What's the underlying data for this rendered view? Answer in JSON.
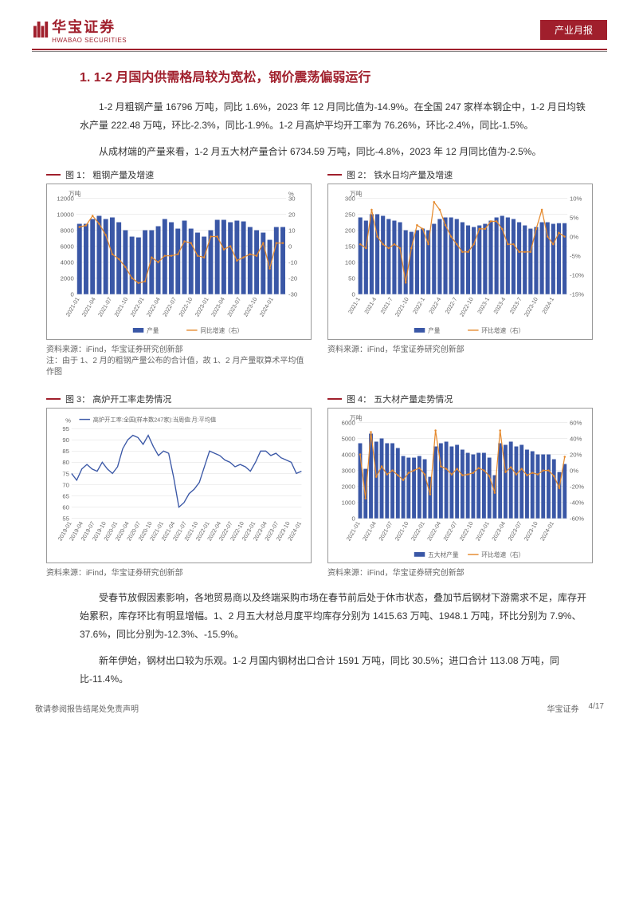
{
  "header": {
    "logo_cn": "华宝证券",
    "logo_en": "HWABAO SECURITIES",
    "badge": "产业月报"
  },
  "section_title": "1. 1-2 月国内供需格局较为宽松，钢价震荡偏弱运行",
  "para1": "1-2 月粗钢产量 16796 万吨，同比 1.6%，2023 年 12 月同比值为-14.9%。在全国 247 家样本钢企中，1-2 月日均铁水产量 222.48 万吨，环比-2.3%，同比-1.9%。1-2 月高炉平均开工率为 76.26%，环比-2.4%，同比-1.5%。",
  "para2": "从成材端的产量来看，1-2 月五大材产量合计 6734.59 万吨，同比-4.8%，2023 年 12 月同比值为-2.5%。",
  "para3": "受春节放假因素影响，各地贸易商以及终端采购市场在春节前后处于休市状态，叠加节后钢材下游需求不足，库存开始累积，库存环比有明显增幅。1、2 月五大材总月度平均库存分别为 1415.63 万吨、1948.1 万吨，环比分别为 7.9%、37.6%，同比分别为-12.3%、-15.9%。",
  "para4": "新年伊始，钢材出口较为乐观。1-2 月国内钢材出口合计 1591 万吨，同比 30.5%；进口合计 113.08 万吨，同比-11.4%。",
  "chart1": {
    "title": "图 1： 粗钢产量及增速",
    "y1_label": "万吨",
    "y2_label": "%",
    "y1_ticks": [
      0,
      2000,
      4000,
      6000,
      8000,
      10000,
      12000
    ],
    "y2_ticks": [
      -30,
      -20,
      -10,
      0,
      10,
      20,
      30
    ],
    "x_labels": [
      "2021-01",
      "2021-04",
      "2021-07",
      "2021-10",
      "2022-01",
      "2022-04",
      "2022-07",
      "2022-10",
      "2023-01",
      "2023-04",
      "2023-07",
      "2023-10",
      "2024-01"
    ],
    "bars": [
      8800,
      8800,
      9400,
      9800,
      9400,
      9600,
      9000,
      8000,
      7200,
      7100,
      8000,
      8000,
      8500,
      9400,
      9000,
      8200,
      9200,
      8200,
      7700,
      7200,
      8000,
      9300,
      9300,
      9000,
      9200,
      9100,
      8400,
      8000,
      7700,
      6800,
      8400,
      8400
    ],
    "line": [
      12,
      13,
      19,
      14,
      7,
      -5,
      -8,
      -13,
      -20,
      -23,
      -22,
      -7,
      -10,
      -6,
      -6,
      -5,
      3,
      2,
      -6,
      -7,
      6,
      6,
      -2,
      0,
      -9,
      -7,
      -5,
      -6,
      2,
      -14,
      2,
      2
    ],
    "legend_bar": "产量",
    "legend_line": "同比增速（右）",
    "bar_color": "#3a57a6",
    "line_color": "#e58a2e",
    "source": "资料来源：iFind，华宝证券研究创新部",
    "note": "注：由于 1、2 月的粗钢产量公布的合计值，故 1、2 月产量取算术平均值作图"
  },
  "chart2": {
    "title": "图 2： 铁水日均产量及增速",
    "y1_label": "万吨",
    "y2_label": "",
    "y1_ticks": [
      0,
      50,
      100,
      150,
      200,
      250,
      300
    ],
    "y2_ticks_labels": [
      "-15%",
      "-10%",
      "-5%",
      "0%",
      "5%",
      "10%"
    ],
    "x_labels": [
      "2021-1",
      "2021-4",
      "2021-7",
      "2021-10",
      "2022-1",
      "2022-4",
      "2022-7",
      "2022-10",
      "2023-1",
      "2023-4",
      "2023-7",
      "2023-10",
      "2024-1"
    ],
    "bars": [
      240,
      230,
      250,
      250,
      245,
      235,
      230,
      225,
      200,
      195,
      200,
      205,
      200,
      220,
      235,
      240,
      240,
      235,
      225,
      215,
      210,
      215,
      220,
      230,
      240,
      245,
      240,
      235,
      225,
      215,
      205,
      210,
      225,
      225,
      220,
      222,
      222
    ],
    "line": [
      -2,
      -3,
      7,
      0,
      -2,
      -3,
      -2,
      -3,
      -12,
      -3,
      3,
      2,
      -2,
      9,
      7,
      3,
      0,
      -2,
      -4,
      -4,
      -2,
      2,
      2,
      4,
      4,
      2,
      -2,
      -2,
      -4,
      -4,
      -4,
      2,
      7,
      0,
      -2,
      1,
      0
    ],
    "legend_bar": "产量",
    "legend_line": "环比增速（右）",
    "bar_color": "#3a57a6",
    "line_color": "#e58a2e",
    "source": "资料来源：iFind，华宝证券研究创新部"
  },
  "chart3": {
    "title": "图 3： 高炉开工率走势情况",
    "y1_label": "%",
    "y1_ticks": [
      55,
      60,
      65,
      70,
      75,
      80,
      85,
      90,
      95
    ],
    "x_labels": [
      "2019-01",
      "2019-04",
      "2019-07",
      "2019-10",
      "2020-01",
      "2020-04",
      "2020-07",
      "2020-10",
      "2021-01",
      "2021-04",
      "2021-07",
      "2021-10",
      "2022-01",
      "2022-04",
      "2022-07",
      "2022-10",
      "2023-01",
      "2023-04",
      "2023-07",
      "2023-10",
      "2024-01"
    ],
    "line": [
      75,
      72,
      77,
      79,
      77,
      76,
      80,
      77,
      75,
      78,
      86,
      90,
      92,
      91,
      88,
      92,
      87,
      83,
      85,
      84,
      73,
      60,
      62,
      66,
      68,
      71,
      78,
      85,
      84,
      83,
      81,
      80,
      78,
      79,
      78,
      76,
      80,
      85,
      85,
      83,
      84,
      82,
      81,
      80,
      75,
      76
    ],
    "legend_line": "高炉开工率:全国(样本数247家):当周值:月:平均值",
    "line_color": "#3a57a6",
    "source": "资料来源：iFind，华宝证券研究创新部"
  },
  "chart4": {
    "title": "图 4： 五大材产量走势情况",
    "y1_label": "万吨",
    "y1_ticks": [
      0,
      1000,
      2000,
      3000,
      4000,
      5000,
      6000
    ],
    "y2_ticks_labels": [
      "-60%",
      "-40%",
      "-20%",
      "0%",
      "20%",
      "40%",
      "60%"
    ],
    "x_labels": [
      "2021-01",
      "2021-04",
      "2021-07",
      "2021-10",
      "2022-01",
      "2022-04",
      "2022-07",
      "2022-10",
      "2023-01",
      "2023-04",
      "2023-07",
      "2023-10",
      "2024-01"
    ],
    "bars": [
      4700,
      3100,
      5300,
      4800,
      5000,
      4700,
      4700,
      4400,
      3900,
      3800,
      3800,
      3900,
      3700,
      2600,
      4500,
      4700,
      4800,
      4500,
      4600,
      4300,
      4100,
      4000,
      4100,
      4100,
      3800,
      2700,
      4700,
      4600,
      4800,
      4500,
      4600,
      4300,
      4200,
      4000,
      4000,
      4000,
      3700,
      2900,
      3400
    ],
    "line": [
      20,
      -35,
      48,
      -8,
      5,
      -5,
      0,
      -6,
      -12,
      -3,
      0,
      3,
      -5,
      -30,
      50,
      5,
      2,
      -5,
      2,
      -6,
      -5,
      -3,
      3,
      0,
      -7,
      -28,
      50,
      -2,
      4,
      -5,
      2,
      -6,
      -3,
      -5,
      0,
      0,
      -7,
      -22,
      17
    ],
    "legend_bar": "五大材产量",
    "legend_line": "环比增速（右）",
    "bar_color": "#3a57a6",
    "line_color": "#e58a2e",
    "source": "资料来源：iFind，华宝证券研究创新部"
  },
  "footer": {
    "left": "敬请参阅报告结尾处免责声明",
    "brand": "华宝证券",
    "page": "4/17"
  }
}
